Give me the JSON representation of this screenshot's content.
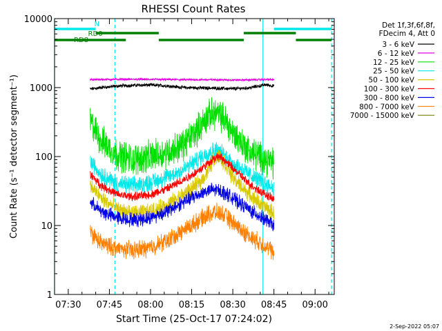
{
  "chart_data": {
    "type": "line",
    "title": "RHESSI Count Rates",
    "xlabel": "Start Time (25-Oct-17 07:24:02)",
    "ylabel": "Count Rate (s⁻¹ detector segment⁻¹)",
    "ylog": true,
    "ylim": [
      1,
      10000
    ],
    "xlim_minutes": [
      445,
      547
    ],
    "grid": false,
    "legend_position": "right, outside plot",
    "date_stamp": "2-Sep-2022 05:07",
    "x_ticks": [
      {
        "m": 450,
        "label": "07:30"
      },
      {
        "m": 465,
        "label": "07:45"
      },
      {
        "m": 480,
        "label": "08:00"
      },
      {
        "m": 495,
        "label": "08:15"
      },
      {
        "m": 510,
        "label": "08:30"
      },
      {
        "m": 525,
        "label": "08:45"
      },
      {
        "m": 540,
        "label": "09:00"
      }
    ],
    "y_ticks": [
      {
        "v": 1,
        "label": "1"
      },
      {
        "v": 10,
        "label": "10"
      },
      {
        "v": 100,
        "label": "100"
      },
      {
        "v": 1000,
        "label": "1000"
      },
      {
        "v": 10000,
        "label": "10000"
      }
    ],
    "legend_header": [
      "Det 1f,3f,6f,8f,",
      "FDecim 4, Att 0"
    ],
    "series": [
      {
        "name": "3 - 6 keV",
        "color": "#000000",
        "x": [
          458,
          462,
          468,
          474,
          480,
          486,
          492,
          498,
          504,
          510,
          516,
          522,
          525
        ],
        "y": [
          950,
          1000,
          1050,
          1080,
          1090,
          1060,
          1000,
          990,
          980,
          960,
          990,
          1100,
          1050
        ]
      },
      {
        "name": "6 - 12 keV",
        "color": "#e000e0",
        "x": [
          458,
          462,
          468,
          474,
          480,
          486,
          492,
          498,
          504,
          510,
          516,
          522,
          525
        ],
        "y": [
          1300,
          1310,
          1320,
          1320,
          1310,
          1310,
          1300,
          1300,
          1300,
          1290,
          1290,
          1310,
          1300
        ]
      },
      {
        "name": "12 - 25 keV",
        "color": "#00e000",
        "x": [
          458,
          462,
          468,
          474,
          480,
          486,
          492,
          498,
          501,
          504,
          507,
          510,
          516,
          522,
          525
        ],
        "y": [
          320,
          170,
          105,
          90,
          100,
          115,
          150,
          270,
          390,
          430,
          350,
          220,
          120,
          90,
          80
        ]
      },
      {
        "name": "25 - 50 keV",
        "color": "#00e8e8",
        "x": [
          458,
          462,
          468,
          474,
          480,
          486,
          492,
          498,
          501,
          504,
          507,
          510,
          516,
          522,
          525
        ],
        "y": [
          85,
          55,
          40,
          38,
          42,
          50,
          65,
          95,
          115,
          125,
          105,
          80,
          55,
          40,
          35
        ]
      },
      {
        "name": "50 - 100 keV",
        "color": "#d8c800",
        "x": [
          458,
          462,
          468,
          474,
          480,
          486,
          492,
          498,
          501,
          503,
          505,
          507,
          510,
          516,
          522,
          525
        ],
        "y": [
          38,
          25,
          17,
          15,
          16,
          20,
          28,
          42,
          62,
          92,
          100,
          80,
          50,
          28,
          18,
          15
        ]
      },
      {
        "name": "100 - 300 keV",
        "color": "#ff0000",
        "x": [
          458,
          462,
          468,
          474,
          480,
          486,
          492,
          498,
          501,
          503,
          505,
          507,
          510,
          516,
          522,
          525
        ],
        "y": [
          55,
          38,
          28,
          26,
          28,
          34,
          46,
          64,
          80,
          95,
          100,
          88,
          68,
          40,
          28,
          24
        ]
      },
      {
        "name": "300 - 800 keV",
        "color": "#0000e8",
        "x": [
          458,
          462,
          468,
          474,
          480,
          486,
          492,
          498,
          501,
          504,
          507,
          510,
          516,
          522,
          525
        ],
        "y": [
          22,
          16,
          13,
          12,
          13,
          16,
          22,
          29,
          32,
          33,
          30,
          25,
          17,
          12,
          10
        ]
      },
      {
        "name": "800 - 7000 keV",
        "color": "#ff7f00",
        "x": [
          458,
          462,
          468,
          474,
          480,
          486,
          492,
          498,
          501,
          504,
          507,
          510,
          516,
          522,
          525
        ],
        "y": [
          8,
          5.5,
          4.6,
          4.4,
          4.8,
          6,
          8.5,
          12,
          14.5,
          15.5,
          14,
          11,
          7,
          5,
          4
        ]
      },
      {
        "name": "7000 - 15000 keV",
        "color": "#708000",
        "x": [],
        "y": []
      }
    ],
    "bars": [
      {
        "label": "N",
        "color": "#00e8e8",
        "segments": [
          [
            445,
            460
          ],
          [
            525,
            546
          ]
        ]
      },
      {
        "label": "RD0",
        "color": "#008000",
        "segments": [
          [
            460,
            483
          ],
          [
            514,
            533
          ]
        ]
      },
      {
        "label": "RD8",
        "color": "#008000",
        "segments": [
          [
            445,
            471
          ],
          [
            483,
            514
          ],
          [
            533,
            546
          ]
        ]
      }
    ],
    "vlines": [
      {
        "m": 445,
        "color": "#00e8e8",
        "style": "solid"
      },
      {
        "m": 467,
        "color": "#00e8e8",
        "style": "dashed"
      },
      {
        "m": 521,
        "color": "#00e8e8",
        "style": "solid"
      },
      {
        "m": 546,
        "color": "#00e8e8",
        "style": "dashed"
      }
    ]
  }
}
